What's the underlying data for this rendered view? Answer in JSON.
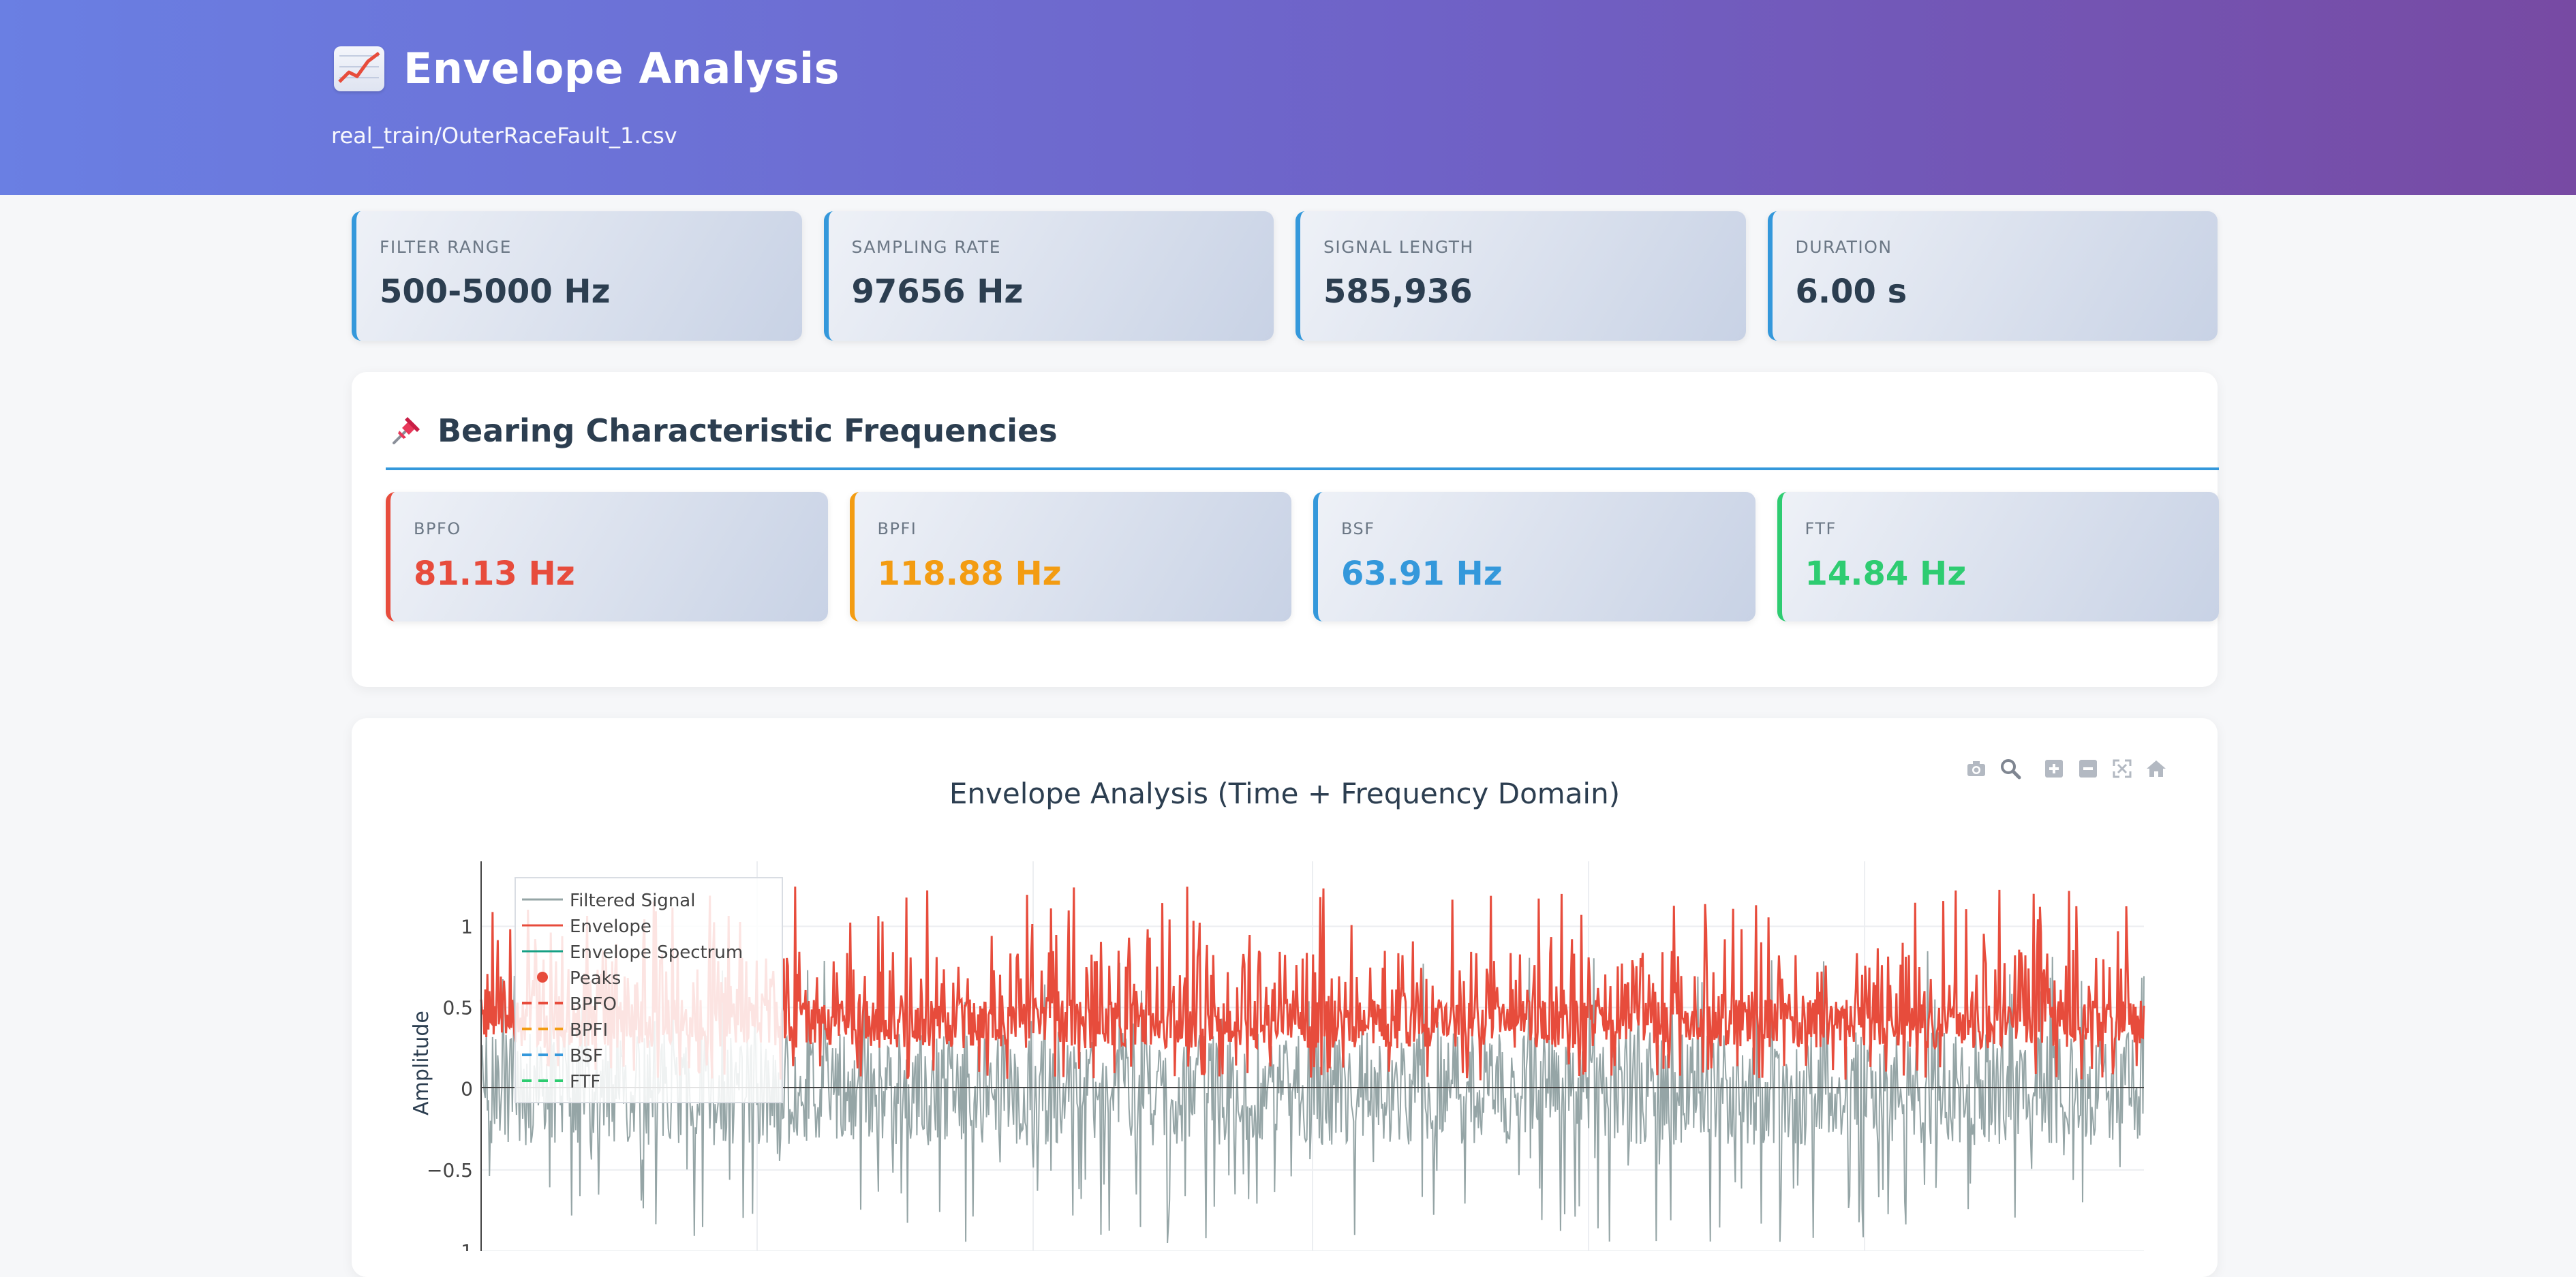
{
  "header": {
    "title": "Envelope Analysis",
    "subtitle": "real_train/OuterRaceFault_1.csv"
  },
  "stats": [
    {
      "label": "FILTER RANGE",
      "value": "500-5000 Hz"
    },
    {
      "label": "SAMPLING RATE",
      "value": "97656 Hz"
    },
    {
      "label": "SIGNAL LENGTH",
      "value": "585,936"
    },
    {
      "label": "DURATION",
      "value": "6.00 s"
    }
  ],
  "bearing": {
    "title": "Bearing Characteristic Frequencies",
    "items": [
      {
        "label": "BPFO",
        "value": "81.13 Hz",
        "color": "#e74c3c"
      },
      {
        "label": "BPFI",
        "value": "118.88 Hz",
        "color": "#f39c12"
      },
      {
        "label": "BSF",
        "value": "63.91 Hz",
        "color": "#3498db"
      },
      {
        "label": "FTF",
        "value": "14.84 Hz",
        "color": "#2ecc71"
      }
    ]
  },
  "toolbar_icons": [
    "camera-icon",
    "zoom-icon",
    "zoom-in-icon",
    "zoom-out-icon",
    "autoscale-icon",
    "home-icon"
  ],
  "chart_data": {
    "type": "line",
    "title": "Envelope Analysis (Time + Frequency Domain)",
    "ylabel": "Amplitude",
    "y_ticks": [
      "1",
      "0.5",
      "0",
      "−0.5",
      "−1"
    ],
    "y_tick_values": [
      1,
      0.5,
      0,
      -0.5,
      -1
    ],
    "ylim": [
      -1,
      1.4
    ],
    "grid": true,
    "legend_position": "top-left",
    "legend": [
      {
        "name": "Filtered Signal",
        "color": "#95a5a6",
        "style": "line"
      },
      {
        "name": "Envelope",
        "color": "#e74c3c",
        "style": "line"
      },
      {
        "name": "Envelope Spectrum",
        "color": "#16a085",
        "style": "line"
      },
      {
        "name": "Peaks",
        "color": "#e74c3c",
        "style": "marker"
      },
      {
        "name": "BPFO",
        "color": "#e74c3c",
        "style": "dash"
      },
      {
        "name": "BPFI",
        "color": "#f39c12",
        "style": "dash"
      },
      {
        "name": "BSF",
        "color": "#3498db",
        "style": "dash"
      },
      {
        "name": "FTF",
        "color": "#2ecc71",
        "style": "dash"
      }
    ],
    "series": [
      {
        "color": "#95a5a6",
        "min": -0.95,
        "max": 0.85,
        "samples": 1600
      },
      {
        "color": "#e74c3c",
        "min": 0.0,
        "max": 1.25,
        "samples": 1600
      }
    ]
  }
}
